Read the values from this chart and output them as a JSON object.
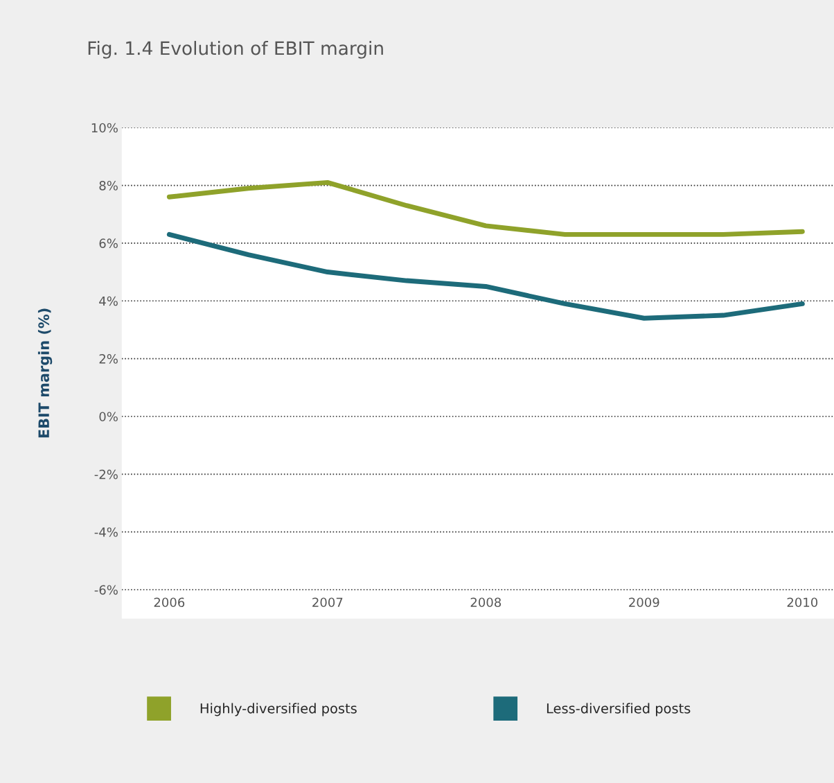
{
  "chart_data": {
    "type": "line",
    "title": "Fig. 1.4 Evolution of EBIT margin",
    "ylabel": "EBIT margin (%)",
    "series": [
      {
        "name": "Highly-diversified posts",
        "color": "#8fa22a",
        "x": [
          2006,
          2006.5,
          2007,
          2007.5,
          2008,
          2008.5,
          2009,
          2009.5,
          2010
        ],
        "values": [
          7.6,
          7.9,
          8.1,
          7.3,
          6.6,
          6.3,
          6.3,
          6.3,
          6.4
        ]
      },
      {
        "name": "Less-diversified posts",
        "color": "#1d6b7a",
        "x": [
          2006,
          2006.5,
          2007,
          2007.5,
          2008,
          2008.5,
          2009,
          2009.5,
          2010
        ],
        "values": [
          6.3,
          5.6,
          5.0,
          4.7,
          4.5,
          3.9,
          3.4,
          3.5,
          3.9
        ]
      }
    ],
    "xlim": [
      2005.7,
      2010.2
    ],
    "xticks": [
      2006,
      2007,
      2008,
      2009,
      2010
    ],
    "ylim": [
      -7,
      10
    ],
    "yticks": [
      {
        "value": 10,
        "label": "10%"
      },
      {
        "value": 8,
        "label": "8%"
      },
      {
        "value": 6,
        "label": "6%"
      },
      {
        "value": 4,
        "label": "4%"
      },
      {
        "value": 2,
        "label": "2%"
      },
      {
        "value": 0,
        "label": "0%"
      },
      {
        "value": -2,
        "label": "-2%"
      },
      {
        "value": -4,
        "label": "-4%"
      },
      {
        "value": -6,
        "label": "-6%"
      }
    ],
    "grid": "y",
    "legend": "bottom",
    "line_style": "solid",
    "marker": "none"
  }
}
